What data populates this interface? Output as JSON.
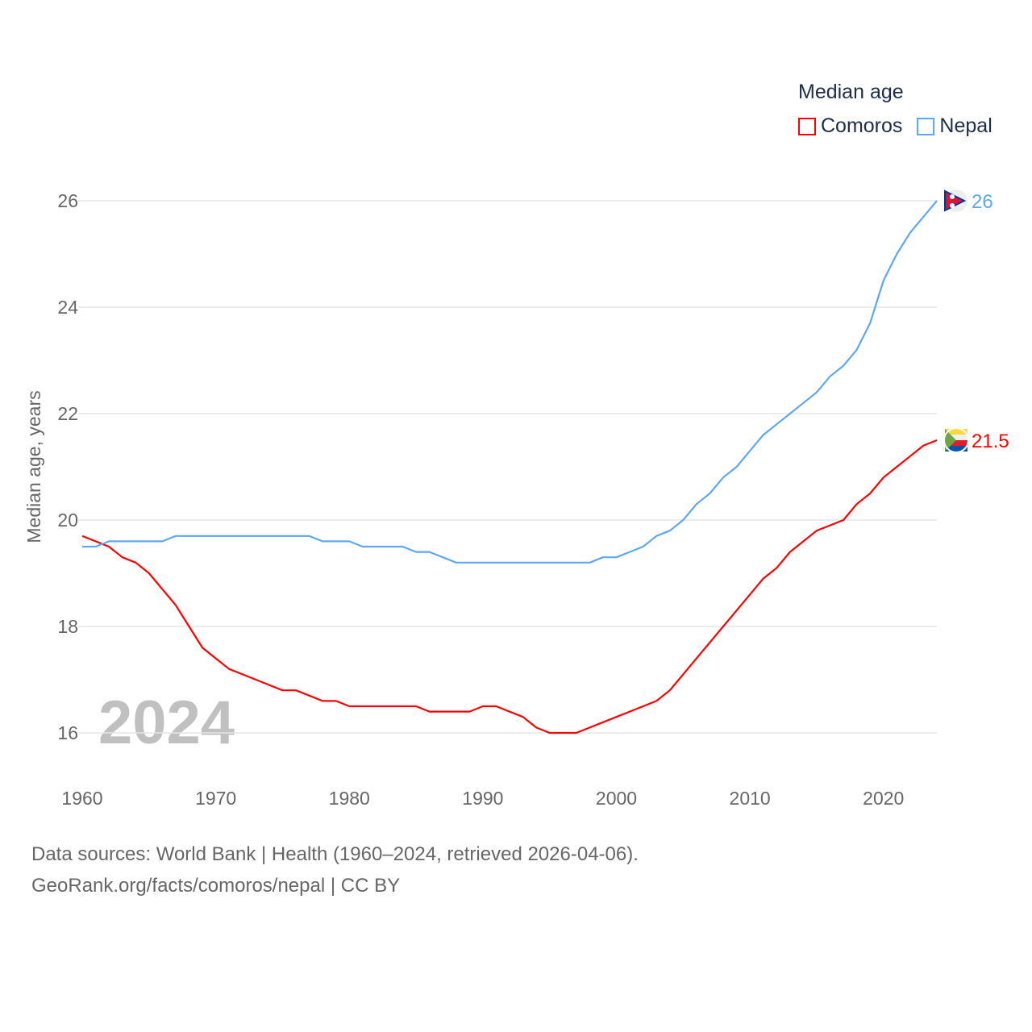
{
  "chart_data": {
    "type": "line",
    "title": "Median age",
    "xlabel": "",
    "ylabel": "Median age, years",
    "xlim": [
      1960,
      2024
    ],
    "ylim": [
      16,
      26
    ],
    "xticks": [
      "1960",
      "1970",
      "1980",
      "1990",
      "2000",
      "2010",
      "2020"
    ],
    "yticks": [
      "16",
      "18",
      "20",
      "22",
      "24",
      "26"
    ],
    "grid": true,
    "legend_placement": "top-right",
    "watermark_year": "2024",
    "x": [
      1960,
      1961,
      1962,
      1963,
      1964,
      1965,
      1966,
      1967,
      1968,
      1969,
      1970,
      1971,
      1972,
      1973,
      1974,
      1975,
      1976,
      1977,
      1978,
      1979,
      1980,
      1981,
      1982,
      1983,
      1984,
      1985,
      1986,
      1987,
      1988,
      1989,
      1990,
      1991,
      1992,
      1993,
      1994,
      1995,
      1996,
      1997,
      1998,
      1999,
      2000,
      2001,
      2002,
      2003,
      2004,
      2005,
      2006,
      2007,
      2008,
      2009,
      2010,
      2011,
      2012,
      2013,
      2014,
      2015,
      2016,
      2017,
      2018,
      2019,
      2020,
      2021,
      2022,
      2023,
      2024
    ],
    "series": [
      {
        "name": "Comoros",
        "color": "#ff0000",
        "end_label": "21.5",
        "values": [
          19.7,
          19.6,
          19.5,
          19.3,
          19.2,
          19.0,
          18.7,
          18.4,
          18.0,
          17.6,
          17.4,
          17.2,
          17.1,
          17.0,
          16.9,
          16.8,
          16.8,
          16.7,
          16.6,
          16.6,
          16.5,
          16.5,
          16.5,
          16.5,
          16.5,
          16.5,
          16.4,
          16.4,
          16.4,
          16.4,
          16.5,
          16.5,
          16.4,
          16.3,
          16.1,
          16.0,
          16.0,
          16.0,
          16.1,
          16.2,
          16.3,
          16.4,
          16.5,
          16.6,
          16.8,
          17.1,
          17.4,
          17.7,
          18.0,
          18.3,
          18.6,
          18.9,
          19.1,
          19.4,
          19.6,
          19.8,
          19.9,
          20.0,
          20.3,
          20.5,
          20.8,
          21.0,
          21.2,
          21.4,
          21.5
        ]
      },
      {
        "name": "Nepal",
        "color": "#5fa8ef",
        "end_label": "26",
        "values": [
          19.5,
          19.5,
          19.6,
          19.6,
          19.6,
          19.6,
          19.6,
          19.7,
          19.7,
          19.7,
          19.7,
          19.7,
          19.7,
          19.7,
          19.7,
          19.7,
          19.7,
          19.7,
          19.6,
          19.6,
          19.6,
          19.5,
          19.5,
          19.5,
          19.5,
          19.4,
          19.4,
          19.3,
          19.2,
          19.2,
          19.2,
          19.2,
          19.2,
          19.2,
          19.2,
          19.2,
          19.2,
          19.2,
          19.2,
          19.3,
          19.3,
          19.4,
          19.5,
          19.7,
          19.8,
          20.0,
          20.3,
          20.5,
          20.8,
          21.0,
          21.3,
          21.6,
          21.8,
          22.0,
          22.2,
          22.4,
          22.7,
          22.9,
          23.2,
          23.7,
          24.5,
          25.0,
          25.4,
          25.7,
          26.0
        ]
      }
    ]
  },
  "source": {
    "line1": "Data sources: World Bank | Health (1960–2024, retrieved 2026-04-06).",
    "line2": "GeoRank.org/facts/comoros/nepal | CC BY"
  }
}
